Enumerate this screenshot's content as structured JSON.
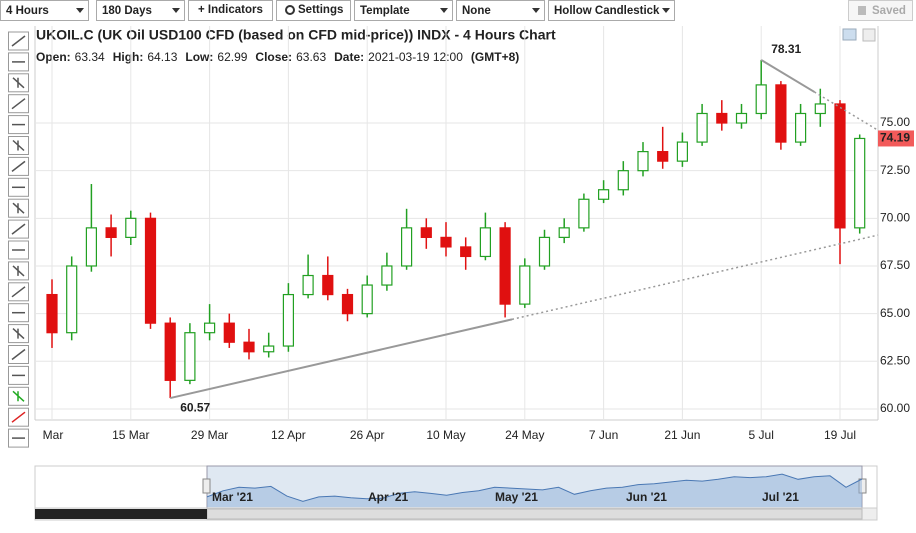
{
  "toolbar": [
    "4 Hours",
    "180 Days",
    "+ Indicators",
    "Settings",
    "Template",
    "None",
    "Hollow Candlestick"
  ],
  "saved": "Saved",
  "chart_data": {
    "type": "candlestick",
    "title": "UKOIL.C (UK Oil USD100 CFD (based on CFD mid-price)) INDX - 4 Hours Chart",
    "info": [
      {
        "label": "Open:",
        "value": 63.34
      },
      {
        "label": "High:",
        "value": 64.13
      },
      {
        "label": "Low:",
        "value": 62.99
      },
      {
        "label": "Close:",
        "value": 63.63
      },
      {
        "label": "Date:",
        "value": "2021-03-19 12:00"
      },
      {
        "label": "(GMT+8)",
        "value": null
      }
    ],
    "categories": [
      "Mar",
      null,
      null,
      null,
      "15 Mar",
      null,
      null,
      null,
      "29 Mar",
      null,
      null,
      null,
      "12 Apr",
      null,
      null,
      null,
      "26 Apr",
      null,
      null,
      null,
      "10 May",
      null,
      null,
      null,
      "24 May",
      null,
      null,
      null,
      "7 Jun",
      null,
      null,
      null,
      "21 Jun",
      null,
      null,
      null,
      "5 Jul",
      null,
      null,
      null,
      "19 Jul",
      null
    ],
    "open": [
      66.0,
      64.0,
      67.5,
      69.5,
      69.0,
      70.0,
      64.5,
      61.5,
      64.0,
      64.5,
      63.5,
      63.0,
      63.3,
      66.0,
      67.0,
      66.0,
      65.0,
      66.5,
      67.5,
      69.5,
      69.0,
      68.5,
      68.0,
      69.5,
      65.5,
      67.5,
      69.0,
      69.5,
      71.0,
      71.5,
      72.5,
      73.5,
      73.0,
      74.0,
      75.5,
      75.0,
      75.5,
      77.0,
      74.0,
      75.5,
      76.0,
      69.5
    ],
    "high": [
      66.8,
      68.0,
      71.8,
      70.2,
      70.4,
      70.3,
      64.8,
      64.5,
      65.5,
      65.0,
      64.2,
      64.0,
      66.6,
      68.1,
      68.0,
      66.3,
      67.0,
      68.2,
      70.5,
      70.0,
      69.8,
      69.0,
      70.3,
      69.8,
      67.9,
      69.4,
      70.0,
      71.3,
      72.0,
      73.0,
      74.0,
      74.8,
      74.5,
      76.0,
      76.2,
      76.0,
      78.31,
      77.2,
      76.0,
      76.8,
      76.2,
      74.4
    ],
    "low": [
      63.2,
      63.6,
      67.2,
      68.0,
      68.6,
      64.2,
      60.57,
      61.3,
      63.6,
      63.2,
      62.6,
      62.7,
      63.0,
      65.8,
      65.7,
      64.6,
      64.8,
      66.2,
      67.3,
      68.4,
      68.0,
      67.3,
      67.8,
      64.8,
      65.3,
      67.3,
      68.7,
      69.3,
      70.8,
      71.2,
      72.2,
      72.6,
      72.7,
      73.8,
      74.6,
      74.7,
      75.2,
      73.6,
      73.8,
      74.8,
      67.6,
      69.2
    ],
    "close": [
      64.0,
      67.5,
      69.5,
      69.0,
      70.0,
      64.5,
      61.5,
      64.0,
      64.5,
      63.5,
      63.0,
      63.3,
      66.0,
      67.0,
      66.0,
      65.0,
      66.5,
      67.5,
      69.5,
      69.0,
      68.5,
      68.0,
      69.5,
      65.5,
      67.5,
      69.0,
      69.5,
      71.0,
      71.5,
      72.5,
      73.5,
      73.0,
      74.0,
      75.5,
      75.0,
      75.5,
      77.0,
      74.0,
      75.5,
      76.0,
      69.5,
      74.19
    ],
    "up_color": "#22a022",
    "down_color": "#e01010",
    "ylim": [
      59.42,
      79.88
    ],
    "yticks": [
      {
        "value": 60,
        "label": "60.00"
      },
      {
        "value": 62.5,
        "label": "62.50"
      },
      {
        "value": 65,
        "label": "65.00"
      },
      {
        "value": 67.5,
        "label": "67.50"
      },
      {
        "value": 70,
        "label": "70.00"
      },
      {
        "value": 72.5,
        "label": "72.50"
      },
      {
        "value": 75,
        "label": "75.00"
      }
    ],
    "grid": true,
    "trendlines": [
      {
        "start": [
          6,
          60.57
        ],
        "end": [
          23.35,
          64.7
        ]
      },
      {
        "start": [
          36,
          78.31
        ],
        "end": [
          38.7,
          76.63
        ]
      }
    ],
    "navigator_labels": [
      "Mar '21",
      "Apr '21",
      "May '21",
      "Jun '21",
      "Jul '21"
    ]
  }
}
